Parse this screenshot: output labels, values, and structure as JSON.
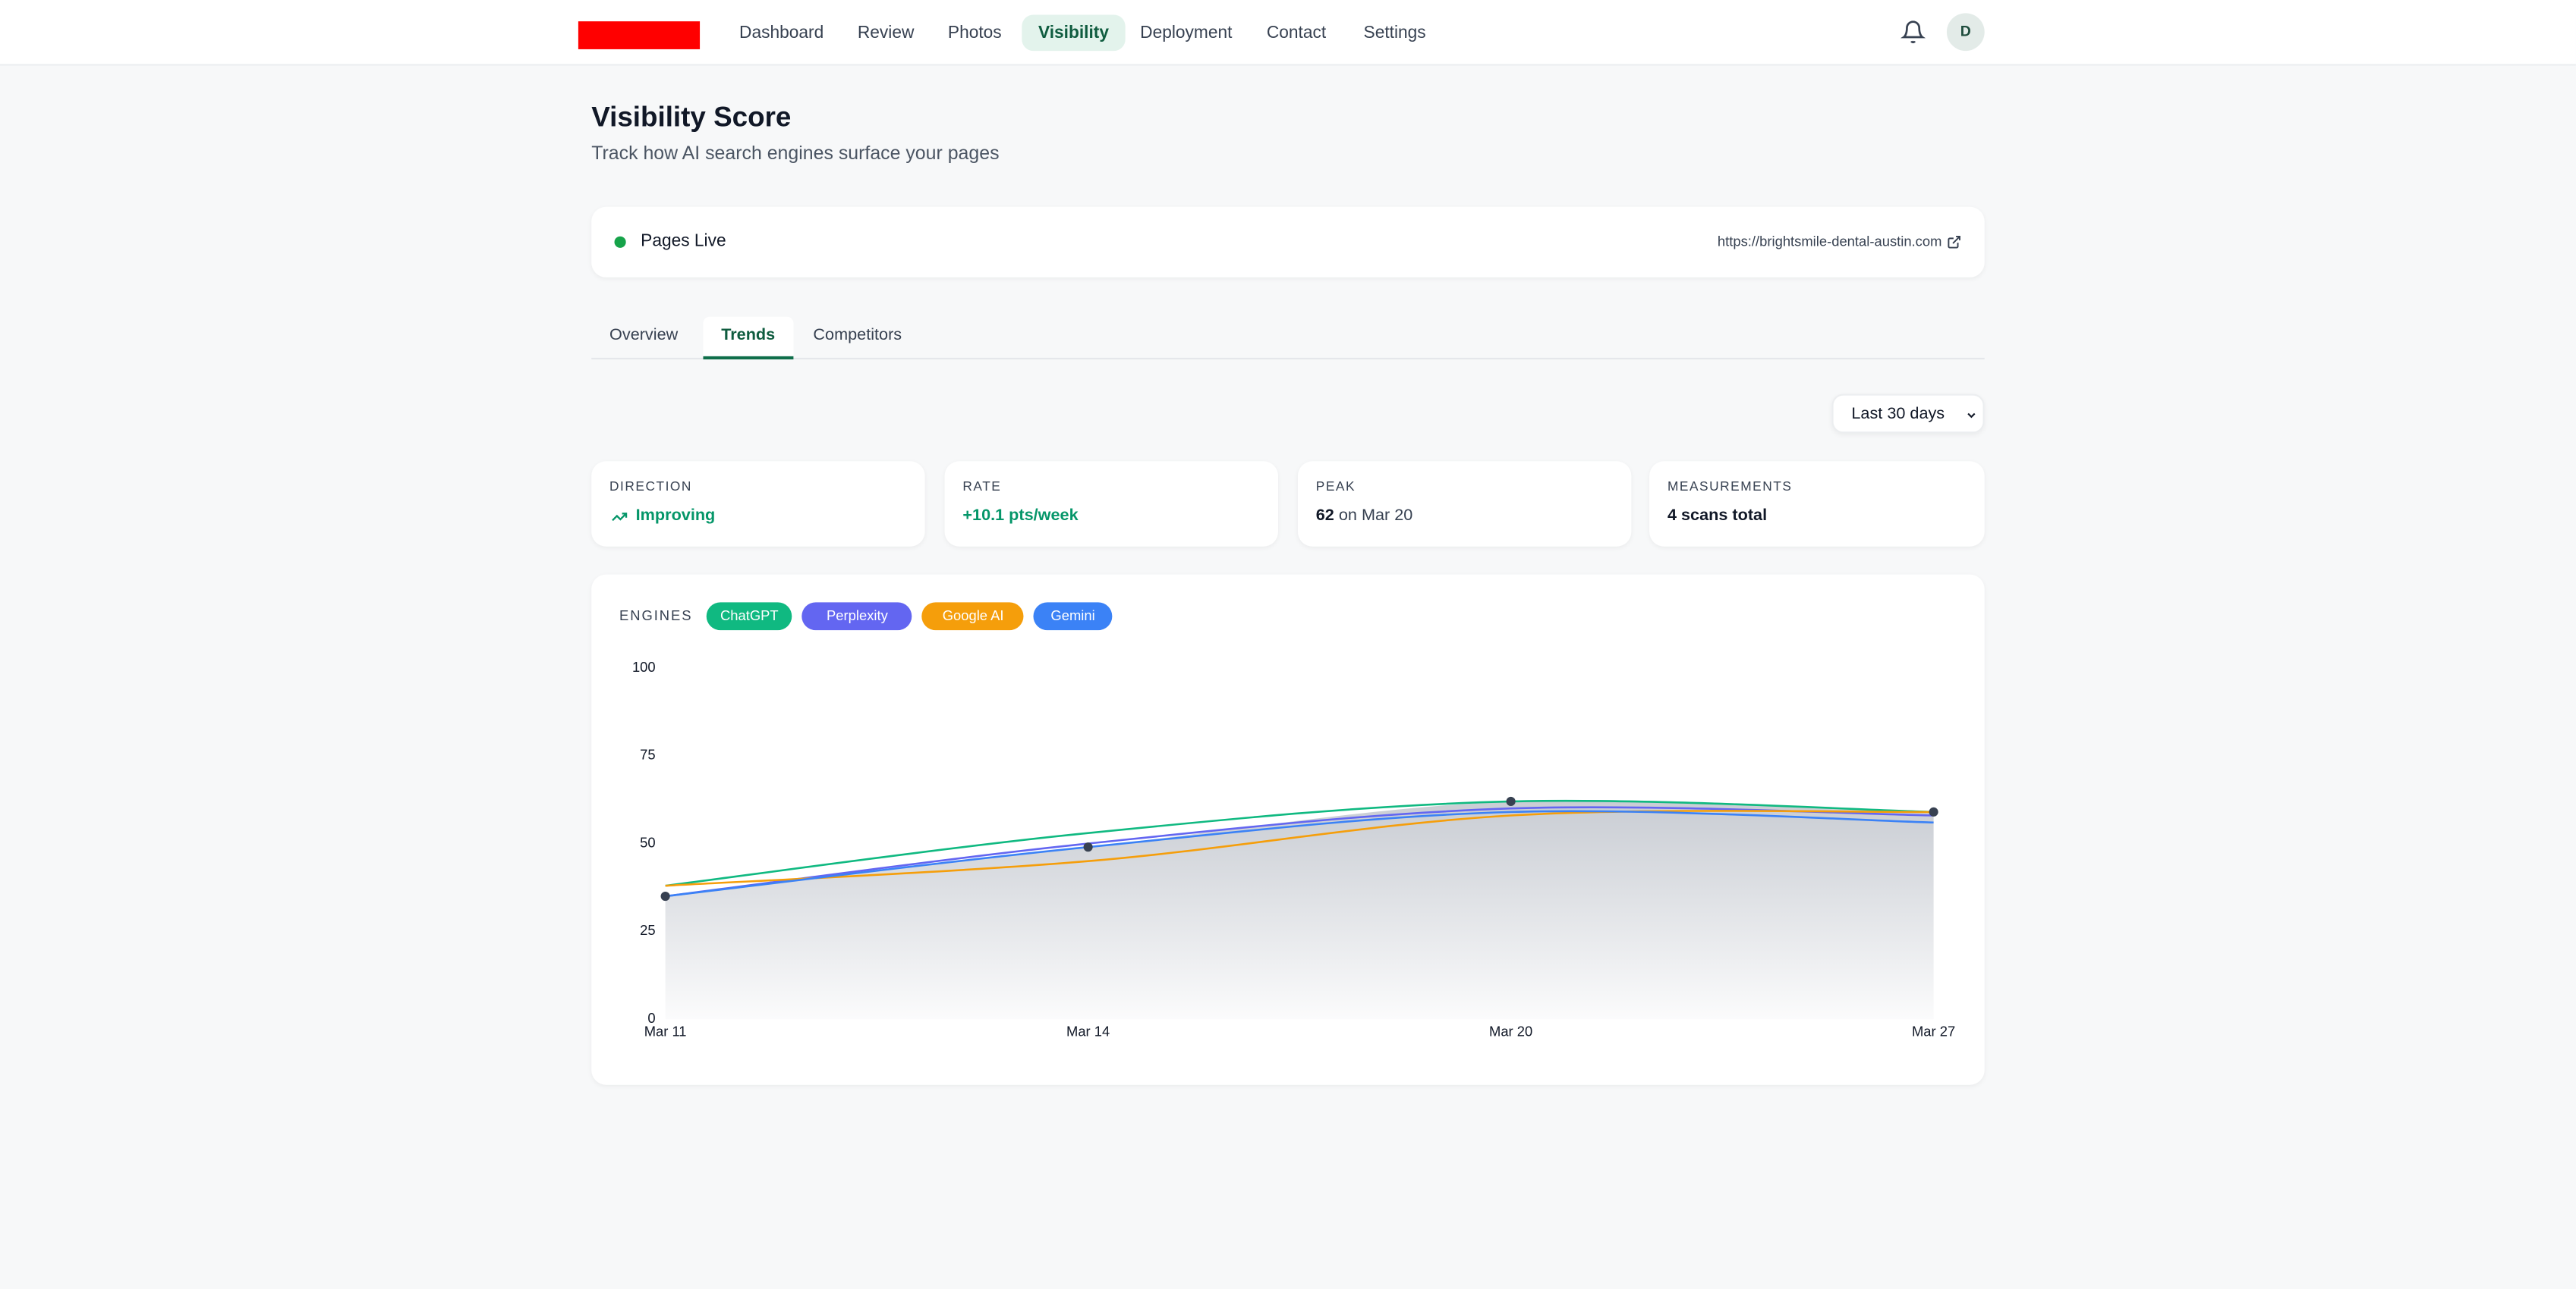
{
  "nav": {
    "items": [
      "Dashboard",
      "Review",
      "Photos",
      "Visibility",
      "Deployment",
      "Contact",
      "Settings"
    ],
    "avatar": "D"
  },
  "header": {
    "title": "Visibility Score",
    "subtitle": "Track how AI search engines surface your pages"
  },
  "status": {
    "label": "Pages Live",
    "url": "https://brightsmile-dental-austin.com"
  },
  "tabs": [
    "Overview",
    "Trends",
    "Competitors"
  ],
  "range": "Last 30 days",
  "stats": {
    "direction": {
      "label": "DIRECTION",
      "value": "Improving"
    },
    "rate": {
      "label": "RATE",
      "value": "+10.1 pts/week"
    },
    "peak": {
      "label": "PEAK",
      "value": 62,
      "note": "on Mar 20"
    },
    "measurements": {
      "label": "MEASUREMENTS",
      "value": "4 scans total"
    }
  },
  "chart_data": {
    "type": "line",
    "legend_title": "ENGINES",
    "categories": [
      "Mar 11",
      "Mar 14",
      "Mar 20",
      "Mar 27"
    ],
    "overall": {
      "values": [
        35,
        49,
        62,
        59
      ],
      "color": "#9ca3af"
    },
    "series": [
      {
        "name": "ChatGPT",
        "color": "#10b981",
        "values": [
          38,
          53,
          62,
          59
        ]
      },
      {
        "name": "Perplexity",
        "color": "#6366f1",
        "values": [
          35,
          50,
          60,
          58
        ]
      },
      {
        "name": "Google AI",
        "color": "#f59e0b",
        "values": [
          38,
          45,
          58,
          59
        ]
      },
      {
        "name": "Gemini",
        "color": "#3b82f6",
        "values": [
          35,
          49,
          59,
          56
        ]
      }
    ],
    "ylim": [
      0,
      100
    ],
    "yticks": [
      0,
      25,
      50,
      75,
      100
    ],
    "grid": false
  }
}
